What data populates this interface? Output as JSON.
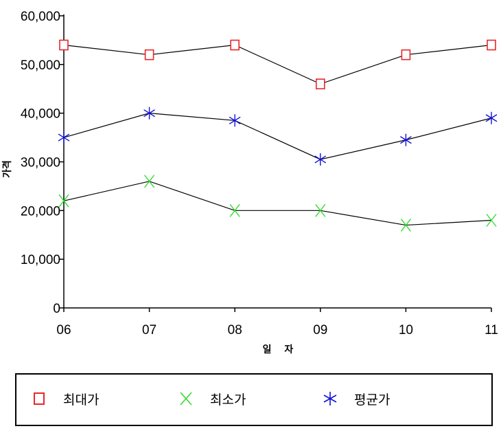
{
  "chart_data": {
    "type": "line",
    "categories": [
      "06",
      "07",
      "08",
      "09",
      "10",
      "11"
    ],
    "xlabel": "일 자",
    "ylabel": "가격",
    "ylim": [
      0,
      60000
    ],
    "yticks": [
      "0",
      "10,000",
      "20,000",
      "30,000",
      "40,000",
      "50,000",
      "60,000"
    ],
    "series": [
      {
        "name": "최대가",
        "values": [
          54000,
          52000,
          54000,
          46000,
          52000,
          54000
        ],
        "marker": "square",
        "color": "#e8262a"
      },
      {
        "name": "최소가",
        "values": [
          22000,
          26000,
          20000,
          20000,
          17000,
          18000
        ],
        "marker": "x",
        "color": "#33dd33"
      },
      {
        "name": "평균가",
        "values": [
          35000,
          40000,
          38500,
          30500,
          34500,
          39000
        ],
        "marker": "asterisk",
        "color": "#1010d8"
      }
    ],
    "line_color": "#000000",
    "legend_position": "bottom"
  }
}
